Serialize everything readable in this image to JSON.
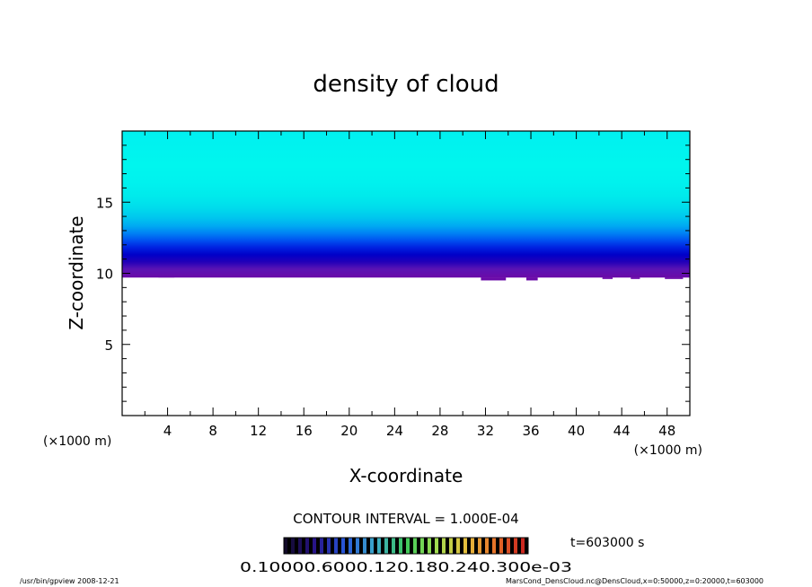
{
  "chart_data": {
    "type": "heatmap",
    "title": "density of cloud",
    "xlabel": "X-coordinate",
    "ylabel": "Z-coordinate",
    "x_unit_left": "(×1000 m)",
    "x_unit_right": "(×1000 m)",
    "xlim": [
      0,
      50
    ],
    "ylim": [
      0,
      20
    ],
    "xticks": [
      4,
      8,
      12,
      16,
      20,
      24,
      28,
      32,
      36,
      40,
      44,
      48
    ],
    "yticks": [
      5,
      10,
      15
    ],
    "z_profile": [
      {
        "z": 9.7,
        "level": "#6a0aa8"
      },
      {
        "z": 10.3,
        "level": "#5a14b4"
      },
      {
        "z": 10.8,
        "level": "#2200b8"
      },
      {
        "z": 11.3,
        "level": "#0000c8"
      },
      {
        "z": 11.8,
        "level": "#0020e0"
      },
      {
        "z": 12.3,
        "level": "#0050f0"
      },
      {
        "z": 12.8,
        "level": "#0080f4"
      },
      {
        "z": 13.3,
        "level": "#00a8f2"
      },
      {
        "z": 13.9,
        "level": "#00c6ee"
      },
      {
        "z": 14.6,
        "level": "#00dcec"
      },
      {
        "z": 15.4,
        "level": "#00eaec"
      },
      {
        "z": 16.4,
        "level": "#00f2ee"
      },
      {
        "z": 17.6,
        "level": "#00f6ee"
      },
      {
        "z": 20.0,
        "level": "#00f0f0"
      }
    ],
    "bottom_boundary_dips": [
      {
        "x0": 0.5,
        "x1": 1.6,
        "z": 9.8
      },
      {
        "x0": 3.2,
        "x1": 4.6,
        "z": 9.7
      },
      {
        "x0": 27.2,
        "x1": 28.0,
        "z": 9.9
      },
      {
        "x0": 31.6,
        "x1": 33.8,
        "z": 9.5
      },
      {
        "x0": 35.6,
        "x1": 36.6,
        "z": 9.5
      },
      {
        "x0": 42.3,
        "x1": 43.2,
        "z": 9.6
      },
      {
        "x0": 44.8,
        "x1": 45.6,
        "z": 9.6
      },
      {
        "x0": 47.8,
        "x1": 49.4,
        "z": 9.6
      }
    ],
    "contour_interval": "CONTOUR INTERVAL = 1.000E-04",
    "colorbar_labels": "0.10000.6000.120.180.240.300e-03",
    "time_label": "t=603000 s",
    "footer_left": "/usr/bin/gpview   2008-12-21",
    "footer_right": "MarsCond_DensCloud.nc@DensCloud,x=0:50000,z=0:20000,t=603000"
  }
}
